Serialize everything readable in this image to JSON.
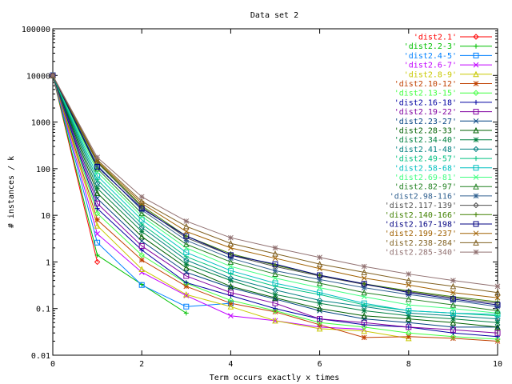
{
  "chart_data": {
    "type": "line",
    "title": "Data set 2",
    "xlabel": "Term occurs exactly x times",
    "ylabel": "# instances / k",
    "xlim": [
      0,
      10
    ],
    "ylim": [
      0.01,
      100000
    ],
    "yscale": "log",
    "grid": false,
    "legend_position": "top-right",
    "x_ticks": [
      0,
      2,
      4,
      6,
      8,
      10
    ],
    "x_tick_labels": [
      "0",
      "2",
      "4",
      "6",
      "8",
      "10"
    ],
    "y_ticks": [
      0.01,
      0.1,
      1,
      10,
      100,
      1000,
      10000,
      100000
    ],
    "y_tick_labels": [
      "0.01",
      "0.1",
      "1",
      "10",
      "100",
      "1000",
      "10000",
      "100000"
    ],
    "series": [
      {
        "name": "'dist2.1'",
        "color": "#ff0000",
        "marker": "diamond",
        "x": [
          0,
          1
        ],
        "y": [
          10000,
          1.0
        ]
      },
      {
        "name": "'dist2.2-3'",
        "color": "#00c000",
        "marker": "plus",
        "x": [
          0,
          1,
          2,
          3
        ],
        "y": [
          10000,
          1.4,
          0.33,
          0.08
        ]
      },
      {
        "name": "'dist2.4-5'",
        "color": "#0080ff",
        "marker": "square",
        "x": [
          0,
          1,
          2,
          3,
          4
        ],
        "y": [
          10000,
          2.6,
          0.32,
          0.11,
          0.13
        ]
      },
      {
        "name": "'dist2.6-7'",
        "color": "#c000ff",
        "marker": "x",
        "x": [
          0,
          1,
          2,
          3,
          4,
          5,
          6,
          7
        ],
        "y": [
          10000,
          4.0,
          0.6,
          0.19,
          0.07,
          0.055,
          0.04,
          0.036
        ]
      },
      {
        "name": "'dist2.8-9'",
        "color": "#c8c800",
        "marker": "triangle",
        "x": [
          0,
          1,
          2,
          3,
          4,
          5,
          6,
          7,
          8
        ],
        "y": [
          10000,
          6.0,
          0.7,
          0.2,
          0.11,
          0.055,
          0.037,
          0.033,
          0.023
        ]
      },
      {
        "name": "'dist2.10-12'",
        "color": "#c04000",
        "marker": "star",
        "x": [
          0,
          1,
          2,
          3,
          4,
          5,
          6,
          7,
          8,
          9,
          10
        ],
        "y": [
          10000,
          8.0,
          1.1,
          0.3,
          0.13,
          0.085,
          0.045,
          0.024,
          0.025,
          0.023,
          0.02
        ]
      },
      {
        "name": "'dist2.13-15'",
        "color": "#40ff40",
        "marker": "diamond",
        "x": [
          0,
          1,
          2,
          3,
          4,
          5,
          6,
          7,
          8,
          9,
          10
        ],
        "y": [
          10000,
          11,
          1.4,
          0.35,
          0.15,
          0.09,
          0.05,
          0.04,
          0.03,
          0.025,
          0.022
        ]
      },
      {
        "name": "'dist2.16-18'",
        "color": "#0000a0",
        "marker": "plus",
        "x": [
          0,
          1,
          2,
          3,
          4,
          5,
          6,
          7,
          8,
          9,
          10
        ],
        "y": [
          10000,
          14,
          1.8,
          0.36,
          0.19,
          0.1,
          0.06,
          0.045,
          0.04,
          0.03,
          0.025
        ]
      },
      {
        "name": "'dist2.19-22'",
        "color": "#8000a0",
        "marker": "square",
        "x": [
          0,
          1,
          2,
          3,
          4,
          5,
          6,
          7,
          8,
          9,
          10
        ],
        "y": [
          10000,
          18,
          2.2,
          0.5,
          0.22,
          0.13,
          0.06,
          0.05,
          0.04,
          0.035,
          0.03
        ]
      },
      {
        "name": "'dist2.23-27'",
        "color": "#004080",
        "marker": "x",
        "x": [
          0,
          1,
          2,
          3,
          4,
          5,
          6,
          7,
          8,
          9,
          10
        ],
        "y": [
          10000,
          23,
          2.8,
          0.6,
          0.28,
          0.16,
          0.09,
          0.06,
          0.05,
          0.04,
          0.04
        ]
      },
      {
        "name": "'dist2.28-33'",
        "color": "#006000",
        "marker": "triangle",
        "x": [
          0,
          1,
          2,
          3,
          4,
          5,
          6,
          7,
          8,
          9,
          10
        ],
        "y": [
          10000,
          30,
          3.5,
          0.75,
          0.3,
          0.17,
          0.1,
          0.07,
          0.06,
          0.05,
          0.04
        ]
      },
      {
        "name": "'dist2.34-40'",
        "color": "#008040",
        "marker": "star",
        "x": [
          0,
          1,
          2,
          3,
          4,
          5,
          6,
          7,
          8,
          9,
          10
        ],
        "y": [
          10000,
          38,
          4.5,
          0.9,
          0.4,
          0.2,
          0.13,
          0.09,
          0.07,
          0.06,
          0.05
        ]
      },
      {
        "name": "'dist2.41-48'",
        "color": "#008080",
        "marker": "diamond",
        "x": [
          0,
          1,
          2,
          3,
          4,
          5,
          6,
          7,
          8,
          9,
          10
        ],
        "y": [
          10000,
          48,
          5.5,
          1.1,
          0.45,
          0.25,
          0.15,
          0.11,
          0.08,
          0.07,
          0.06
        ]
      },
      {
        "name": "'dist2.49-57'",
        "color": "#00c080",
        "marker": "plus",
        "x": [
          0,
          1,
          2,
          3,
          4,
          5,
          6,
          7,
          8,
          9,
          10
        ],
        "y": [
          10000,
          58,
          6.5,
          1.3,
          0.55,
          0.3,
          0.2,
          0.12,
          0.09,
          0.08,
          0.07
        ]
      },
      {
        "name": "'dist2.58-68'",
        "color": "#00c0c0",
        "marker": "square",
        "x": [
          0,
          1,
          2,
          3,
          4,
          5,
          6,
          7,
          8,
          9,
          10
        ],
        "y": [
          10000,
          70,
          8.0,
          1.6,
          0.65,
          0.35,
          0.22,
          0.13,
          0.09,
          0.08,
          0.075
        ]
      },
      {
        "name": "'dist2.69-81'",
        "color": "#40ff80",
        "marker": "x",
        "x": [
          0,
          1,
          2,
          3,
          4,
          5,
          6,
          7,
          8,
          9,
          10
        ],
        "y": [
          10000,
          85,
          9.5,
          2.0,
          0.8,
          0.45,
          0.28,
          0.18,
          0.12,
          0.1,
          0.08
        ]
      },
      {
        "name": "'dist2.82-97'",
        "color": "#208020",
        "marker": "triangle",
        "x": [
          0,
          1,
          2,
          3,
          4,
          5,
          6,
          7,
          8,
          9,
          10
        ],
        "y": [
          10000,
          100,
          11,
          2.4,
          1.0,
          0.55,
          0.35,
          0.22,
          0.16,
          0.12,
          0.09
        ]
      },
      {
        "name": "'dist2.98-116'",
        "color": "#306090",
        "marker": "star",
        "x": [
          0,
          1,
          2,
          3,
          4,
          5,
          6,
          7,
          8,
          9,
          10
        ],
        "y": [
          10000,
          118,
          13,
          2.9,
          1.2,
          0.65,
          0.42,
          0.28,
          0.2,
          0.15,
          0.11
        ]
      },
      {
        "name": "'dist2.117-139'",
        "color": "#505050",
        "marker": "diamond",
        "x": [
          0,
          1,
          2,
          3,
          4,
          5,
          6,
          7,
          8,
          9,
          10
        ],
        "y": [
          10000,
          135,
          15,
          3.3,
          1.4,
          0.8,
          0.5,
          0.33,
          0.23,
          0.17,
          0.13
        ]
      },
      {
        "name": "'dist2.140-166'",
        "color": "#408000",
        "marker": "plus",
        "x": [
          0,
          1,
          2,
          3,
          4,
          5,
          6,
          7,
          8,
          9,
          10
        ],
        "y": [
          10000,
          140,
          16,
          3.6,
          1.5,
          0.85,
          0.52,
          0.34,
          0.24,
          0.18,
          0.14
        ]
      },
      {
        "name": "'dist2.167-198'",
        "color": "#000080",
        "marker": "square",
        "x": [
          0,
          1,
          2,
          3,
          4,
          5,
          6,
          7,
          8,
          9,
          10
        ],
        "y": [
          10000,
          110,
          14,
          3.6,
          1.4,
          0.9,
          0.52,
          0.34,
          0.22,
          0.16,
          0.12
        ]
      },
      {
        "name": "'dist2.199-237'",
        "color": "#a06000",
        "marker": "x",
        "x": [
          0,
          1,
          2,
          3,
          4,
          5,
          6,
          7,
          8,
          9,
          10
        ],
        "y": [
          10000,
          145,
          18,
          4.5,
          2.0,
          1.2,
          0.72,
          0.45,
          0.32,
          0.22,
          0.17
        ]
      },
      {
        "name": "'dist2.238-284'",
        "color": "#806020",
        "marker": "triangle",
        "x": [
          0,
          1,
          2,
          3,
          4,
          5,
          6,
          7,
          8,
          9,
          10
        ],
        "y": [
          10000,
          155,
          20,
          5.8,
          2.5,
          1.5,
          0.9,
          0.6,
          0.4,
          0.3,
          0.22
        ]
      },
      {
        "name": "'dist2.285-340'",
        "color": "#907070",
        "marker": "star",
        "x": [
          0,
          1,
          2,
          3,
          4,
          5,
          6,
          7,
          8,
          9,
          10
        ],
        "y": [
          10000,
          175,
          25,
          7.5,
          3.3,
          2.0,
          1.25,
          0.8,
          0.55,
          0.4,
          0.3
        ]
      }
    ]
  }
}
